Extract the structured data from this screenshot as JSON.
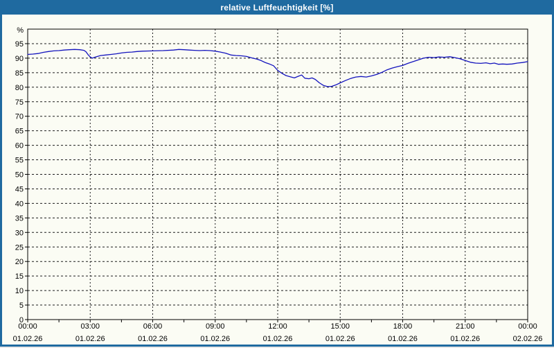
{
  "window": {
    "title": "relative Luftfeuchtigkeit [%]"
  },
  "colors": {
    "titlebar": "#1f6aa0",
    "window_border": "#1f6aa0",
    "title_text": "#ffffff",
    "background": "#fbfcf4",
    "grid": "#1a1a1a",
    "axis": "#000000",
    "line": "#1212bd"
  },
  "chart_data": {
    "type": "line",
    "title": "relative Luftfeuchtigkeit [%]",
    "unit_label": "%",
    "ylim": [
      0,
      100
    ],
    "yticks": [
      0,
      5,
      10,
      15,
      20,
      25,
      30,
      35,
      40,
      45,
      50,
      55,
      60,
      65,
      70,
      75,
      80,
      85,
      90,
      95
    ],
    "x_hours": [
      0,
      3,
      6,
      9,
      12,
      15,
      18,
      21,
      24
    ],
    "x_labels": [
      {
        "time": "00:00",
        "date": "01.02.26"
      },
      {
        "time": "03:00",
        "date": "01.02.26"
      },
      {
        "time": "06:00",
        "date": "01.02.26"
      },
      {
        "time": "09:00",
        "date": "01.02.26"
      },
      {
        "time": "12:00",
        "date": "01.02.26"
      },
      {
        "time": "15:00",
        "date": "01.02.26"
      },
      {
        "time": "18:00",
        "date": "01.02.26"
      },
      {
        "time": "21:00",
        "date": "01.02.26"
      },
      {
        "time": "00:00",
        "date": "02.02.26"
      }
    ],
    "x_minor_tick_hours": 1.5,
    "grid": true,
    "legend": "none",
    "series": [
      {
        "name": "relative Luftfeuchtigkeit",
        "color": "#1212bd",
        "points": [
          [
            0,
            91.3
          ],
          [
            0.25,
            91.4
          ],
          [
            0.5,
            91.6
          ],
          [
            0.75,
            92.0
          ],
          [
            1,
            92.3
          ],
          [
            1.25,
            92.5
          ],
          [
            1.5,
            92.6
          ],
          [
            1.75,
            92.8
          ],
          [
            2,
            92.9
          ],
          [
            2.25,
            93.0
          ],
          [
            2.5,
            92.9
          ],
          [
            2.7,
            92.7
          ],
          [
            2.8,
            92.2
          ],
          [
            2.9,
            91.2
          ],
          [
            3,
            90.4
          ],
          [
            3.1,
            90.0
          ],
          [
            3.25,
            90.4
          ],
          [
            3.5,
            90.9
          ],
          [
            3.75,
            91.1
          ],
          [
            4,
            91.3
          ],
          [
            4.25,
            91.5
          ],
          [
            4.5,
            91.8
          ],
          [
            4.75,
            92.0
          ],
          [
            5,
            92.1
          ],
          [
            5.25,
            92.3
          ],
          [
            5.5,
            92.4
          ],
          [
            6,
            92.5
          ],
          [
            6.5,
            92.6
          ],
          [
            7,
            92.8
          ],
          [
            7.25,
            93.0
          ],
          [
            7.5,
            92.9
          ],
          [
            7.75,
            92.8
          ],
          [
            8,
            92.7
          ],
          [
            8.25,
            92.6
          ],
          [
            8.5,
            92.7
          ],
          [
            8.75,
            92.6
          ],
          [
            9,
            92.4
          ],
          [
            9.25,
            92.1
          ],
          [
            9.5,
            91.7
          ],
          [
            9.75,
            91.1
          ],
          [
            10,
            90.9
          ],
          [
            10.25,
            90.8
          ],
          [
            10.5,
            90.6
          ],
          [
            10.75,
            90.1
          ],
          [
            11,
            89.7
          ],
          [
            11.2,
            89.2
          ],
          [
            11.4,
            88.5
          ],
          [
            11.6,
            88.0
          ],
          [
            11.8,
            87.4
          ],
          [
            12,
            85.8
          ],
          [
            12.2,
            84.8
          ],
          [
            12.4,
            84.0
          ],
          [
            12.6,
            83.6
          ],
          [
            12.8,
            83.2
          ],
          [
            13,
            83.8
          ],
          [
            13.15,
            84.2
          ],
          [
            13.3,
            83.1
          ],
          [
            13.5,
            82.9
          ],
          [
            13.65,
            83.2
          ],
          [
            13.8,
            82.7
          ],
          [
            14,
            81.5
          ],
          [
            14.2,
            80.6
          ],
          [
            14.4,
            80.2
          ],
          [
            14.6,
            80.3
          ],
          [
            14.8,
            80.8
          ],
          [
            15,
            81.5
          ],
          [
            15.25,
            82.3
          ],
          [
            15.5,
            83.0
          ],
          [
            15.75,
            83.5
          ],
          [
            16,
            83.7
          ],
          [
            16.25,
            83.5
          ],
          [
            16.5,
            83.9
          ],
          [
            16.75,
            84.4
          ],
          [
            17,
            85.1
          ],
          [
            17.25,
            86.0
          ],
          [
            17.5,
            86.6
          ],
          [
            17.75,
            87.1
          ],
          [
            18,
            87.5
          ],
          [
            18.25,
            88.2
          ],
          [
            18.5,
            88.8
          ],
          [
            18.75,
            89.4
          ],
          [
            19,
            90.0
          ],
          [
            19.25,
            90.3
          ],
          [
            19.5,
            90.2
          ],
          [
            19.75,
            90.4
          ],
          [
            20,
            90.3
          ],
          [
            20.25,
            90.5
          ],
          [
            20.5,
            90.2
          ],
          [
            20.75,
            89.8
          ],
          [
            21,
            89.2
          ],
          [
            21.25,
            88.6
          ],
          [
            21.5,
            88.3
          ],
          [
            21.75,
            88.2
          ],
          [
            22,
            88.4
          ],
          [
            22.2,
            88.1
          ],
          [
            22.4,
            88.3
          ],
          [
            22.6,
            87.9
          ],
          [
            22.8,
            88.0
          ],
          [
            23,
            87.9
          ],
          [
            23.25,
            88.0
          ],
          [
            23.5,
            88.3
          ],
          [
            23.75,
            88.5
          ],
          [
            24,
            88.8
          ]
        ]
      }
    ]
  }
}
